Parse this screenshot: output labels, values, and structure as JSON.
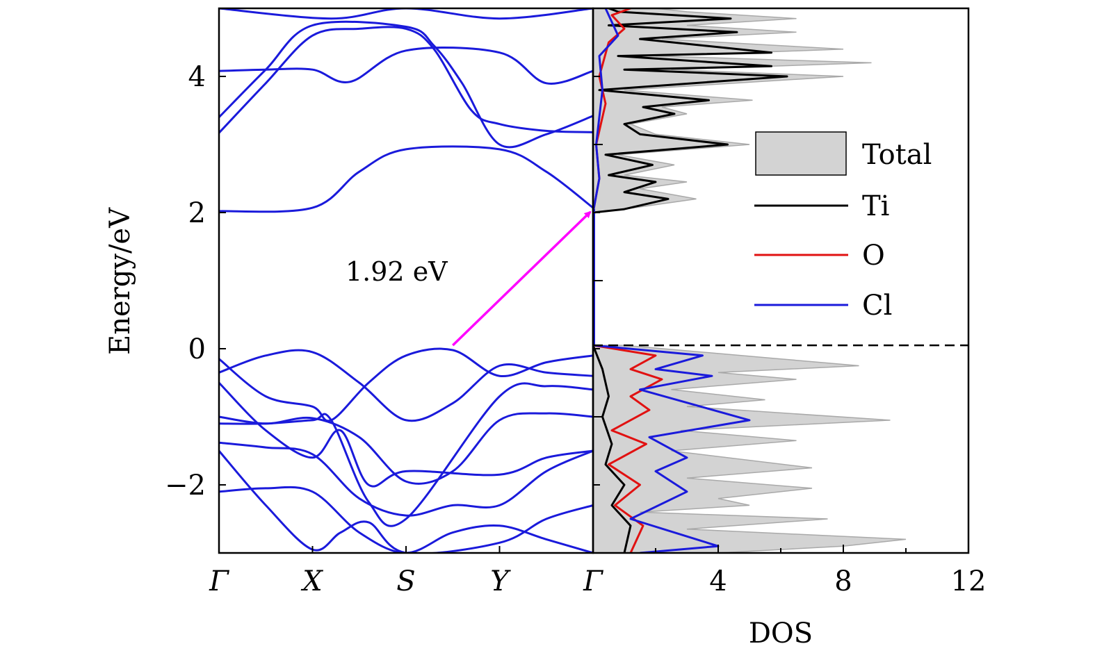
{
  "colors": {
    "band": "#1a1adb",
    "total_fill": "#d3d3d3",
    "total_stroke": "#a9a9a9",
    "ti": "#000000",
    "o": "#e11111",
    "cl": "#1a1adb",
    "arrow": "#ff00ff",
    "fermi": "#000000"
  },
  "chart_data": [
    {
      "type": "line",
      "panel": "band-structure",
      "ylabel": "Energy/eV",
      "ylim": [
        -3,
        5
      ],
      "yticks": [
        {
          "value": -2,
          "label": "−2"
        },
        {
          "value": 0,
          "label": "0"
        },
        {
          "value": 2,
          "label": "2"
        },
        {
          "value": 4,
          "label": "4"
        }
      ],
      "kpoints": [
        {
          "label": "Γ",
          "pos": 0
        },
        {
          "label": "X",
          "pos": 1
        },
        {
          "label": "S",
          "pos": 2
        },
        {
          "label": "Y",
          "pos": 3
        },
        {
          "label": "Γ",
          "pos": 4
        }
      ],
      "annotation": {
        "text": "1.92 eV",
        "arrow_from": {
          "k": 2.5,
          "E": 0.05
        },
        "arrow_to": {
          "k": 4,
          "E": 2.05
        }
      },
      "series": [
        {
          "values": [
            [
              0,
              2.02
            ],
            [
              1,
              2.07
            ],
            [
              1.5,
              2.6
            ],
            [
              2,
              2.93
            ],
            [
              3,
              2.93
            ],
            [
              3.5,
              2.6
            ],
            [
              4,
              2.07
            ]
          ]
        },
        {
          "values": [
            [
              0,
              3.17
            ],
            [
              0.5,
              3.9
            ],
            [
              1,
              4.6
            ],
            [
              1.5,
              4.7
            ],
            [
              2,
              4.7
            ],
            [
              2.3,
              4.4
            ],
            [
              2.7,
              3.5
            ],
            [
              3,
              3.3
            ],
            [
              3.5,
              3.2
            ],
            [
              4,
              3.18
            ]
          ]
        },
        {
          "values": [
            [
              0,
              3.4
            ],
            [
              0.5,
              4.1
            ],
            [
              1,
              4.75
            ],
            [
              2,
              4.73
            ],
            [
              2.3,
              4.45
            ],
            [
              2.6,
              3.9
            ],
            [
              3,
              3.0
            ],
            [
              3.5,
              3.15
            ],
            [
              4,
              3.42
            ]
          ]
        },
        {
          "values": [
            [
              0,
              4.08
            ],
            [
              0.5,
              4.1
            ],
            [
              1,
              4.1
            ],
            [
              1.4,
              3.92
            ],
            [
              2,
              4.38
            ],
            [
              3,
              4.35
            ],
            [
              3.5,
              3.9
            ],
            [
              4,
              4.08
            ]
          ]
        },
        {
          "values": [
            [
              0,
              5.0
            ],
            [
              1.2,
              4.85
            ],
            [
              2,
              5.0
            ],
            [
              3,
              4.85
            ],
            [
              4,
              5.0
            ]
          ]
        },
        {
          "values": [
            [
              0,
              -0.15
            ],
            [
              0.5,
              -0.7
            ],
            [
              1,
              -0.85
            ],
            [
              1.2,
              -1.05
            ],
            [
              1.6,
              -0.5
            ],
            [
              2,
              -0.1
            ],
            [
              2.5,
              -0.02
            ],
            [
              3,
              -0.4
            ],
            [
              3.5,
              -0.2
            ],
            [
              4,
              -0.1
            ]
          ]
        },
        {
          "values": [
            [
              0,
              -0.35
            ],
            [
              0.5,
              -0.1
            ],
            [
              1,
              -0.05
            ],
            [
              1.5,
              -0.5
            ],
            [
              2,
              -1.05
            ],
            [
              2.5,
              -0.8
            ],
            [
              3,
              -0.25
            ],
            [
              3.5,
              -0.35
            ],
            [
              4,
              -0.4
            ]
          ]
        },
        {
          "values": [
            [
              0,
              -0.5
            ],
            [
              0.5,
              -1.2
            ],
            [
              1,
              -1.6
            ],
            [
              1.3,
              -1.2
            ],
            [
              1.6,
              -2.0
            ],
            [
              2,
              -1.8
            ],
            [
              3,
              -1.85
            ],
            [
              3.5,
              -1.6
            ],
            [
              4,
              -1.5
            ]
          ]
        },
        {
          "values": [
            [
              0,
              -1.0
            ],
            [
              0.5,
              -1.1
            ],
            [
              1,
              -1.02
            ],
            [
              1.5,
              -1.3
            ],
            [
              2,
              -1.95
            ],
            [
              2.5,
              -1.8
            ],
            [
              3,
              -1.05
            ],
            [
              3.5,
              -0.95
            ],
            [
              4,
              -1.0
            ]
          ]
        },
        {
          "values": [
            [
              0,
              -1.1
            ],
            [
              0.5,
              -1.1
            ],
            [
              1,
              -1.05
            ],
            [
              1.2,
              -1.05
            ],
            [
              1.6,
              -2.25
            ],
            [
              2,
              -2.5
            ],
            [
              3,
              -0.7
            ],
            [
              3.5,
              -0.55
            ],
            [
              4,
              -0.6
            ]
          ]
        },
        {
          "values": [
            [
              0,
              -1.38
            ],
            [
              0.5,
              -1.45
            ],
            [
              1,
              -1.55
            ],
            [
              1.5,
              -2.2
            ],
            [
              2,
              -2.45
            ],
            [
              2.5,
              -2.3
            ],
            [
              3,
              -2.3
            ],
            [
              3.5,
              -1.8
            ],
            [
              4,
              -1.5
            ]
          ]
        },
        {
          "values": [
            [
              0,
              -1.5
            ],
            [
              0.5,
              -2.3
            ],
            [
              1,
              -2.95
            ],
            [
              1.3,
              -2.7
            ],
            [
              1.6,
              -2.55
            ],
            [
              2,
              -3.0
            ],
            [
              3,
              -2.85
            ],
            [
              3.5,
              -2.5
            ],
            [
              4,
              -2.3
            ]
          ]
        },
        {
          "values": [
            [
              0,
              -2.1
            ],
            [
              0.5,
              -2.05
            ],
            [
              1,
              -2.1
            ],
            [
              1.5,
              -2.7
            ],
            [
              2,
              -3.0
            ],
            [
              2.5,
              -2.7
            ],
            [
              3,
              -2.6
            ],
            [
              3.5,
              -2.8
            ],
            [
              4,
              -3.0
            ]
          ]
        }
      ]
    },
    {
      "type": "area",
      "panel": "dos",
      "xlabel": "DOS",
      "xlim": [
        0,
        12
      ],
      "ylim": [
        -3,
        5
      ],
      "xticks": [
        {
          "value": 4,
          "label": "4"
        },
        {
          "value": 8,
          "label": "8"
        },
        {
          "value": 12,
          "label": "12"
        }
      ],
      "legend": {
        "placement": "right",
        "entries": [
          "Total",
          "Ti",
          "O",
          "Cl"
        ]
      },
      "fermi_level": 0.05,
      "series": [
        {
          "name": "Total",
          "kind": "filled",
          "points": [
            [
              0.05,
              2.0
            ],
            [
              1.0,
              2.05
            ],
            [
              3.3,
              2.2
            ],
            [
              1.5,
              2.35
            ],
            [
              3.0,
              2.45
            ],
            [
              1.0,
              2.55
            ],
            [
              2.6,
              2.7
            ],
            [
              0.8,
              2.85
            ],
            [
              5.0,
              3.0
            ],
            [
              2.0,
              3.15
            ],
            [
              1.2,
              3.3
            ],
            [
              3.0,
              3.45
            ],
            [
              2.2,
              3.55
            ],
            [
              5.1,
              3.65
            ],
            [
              1.0,
              3.8
            ],
            [
              8.0,
              4.0
            ],
            [
              2.5,
              4.1
            ],
            [
              8.9,
              4.2
            ],
            [
              2.0,
              4.3
            ],
            [
              8.0,
              4.4
            ],
            [
              2.2,
              4.55
            ],
            [
              6.5,
              4.65
            ],
            [
              3.0,
              4.75
            ],
            [
              6.5,
              4.85
            ],
            [
              3.0,
              4.95
            ],
            [
              2.0,
              5.0
            ]
          ],
          "points_lower": [
            [
              1.0,
              0.05
            ],
            [
              6.0,
              -0.15
            ],
            [
              8.5,
              -0.25
            ],
            [
              4.0,
              -0.35
            ],
            [
              6.5,
              -0.45
            ],
            [
              2.5,
              -0.6
            ],
            [
              5.5,
              -0.75
            ],
            [
              3.0,
              -0.85
            ],
            [
              9.5,
              -1.05
            ],
            [
              2.8,
              -1.2
            ],
            [
              6.5,
              -1.35
            ],
            [
              2.5,
              -1.5
            ],
            [
              7.0,
              -1.75
            ],
            [
              3.0,
              -1.9
            ],
            [
              7.0,
              -2.05
            ],
            [
              4.0,
              -2.2
            ],
            [
              5.0,
              -2.3
            ],
            [
              1.5,
              -2.4
            ],
            [
              7.5,
              -2.5
            ],
            [
              3.0,
              -2.65
            ],
            [
              10.0,
              -2.8
            ],
            [
              8.0,
              -2.9
            ],
            [
              4.0,
              -3.0
            ]
          ]
        },
        {
          "name": "Ti",
          "kind": "line",
          "points": [
            [
              0,
              2.0
            ],
            [
              1.0,
              2.05
            ],
            [
              2.4,
              2.2
            ],
            [
              1.0,
              2.3
            ],
            [
              2.0,
              2.45
            ],
            [
              0.5,
              2.55
            ],
            [
              1.9,
              2.7
            ],
            [
              0.4,
              2.85
            ],
            [
              4.3,
              3.0
            ],
            [
              1.5,
              3.15
            ],
            [
              1.0,
              3.3
            ],
            [
              2.6,
              3.45
            ],
            [
              1.6,
              3.55
            ],
            [
              3.7,
              3.65
            ],
            [
              0.2,
              3.8
            ],
            [
              6.2,
              4.0
            ],
            [
              1.0,
              4.1
            ],
            [
              5.7,
              4.15
            ],
            [
              0.8,
              4.3
            ],
            [
              5.7,
              4.35
            ],
            [
              1.5,
              4.55
            ],
            [
              4.6,
              4.65
            ],
            [
              0.5,
              4.75
            ],
            [
              4.4,
              4.85
            ],
            [
              0.8,
              4.95
            ],
            [
              0.5,
              5.0
            ],
            [
              0,
              0.05
            ],
            [
              0.3,
              -0.3
            ],
            [
              0.5,
              -0.7
            ],
            [
              0.3,
              -1.0
            ],
            [
              0.6,
              -1.4
            ],
            [
              0.4,
              -1.7
            ],
            [
              1.0,
              -2.0
            ],
            [
              0.6,
              -2.3
            ],
            [
              1.2,
              -2.6
            ],
            [
              1.0,
              -3.0
            ]
          ]
        },
        {
          "name": "O",
          "kind": "line",
          "points": [
            [
              0,
              2.0
            ],
            [
              0.2,
              2.5
            ],
            [
              0.1,
              3.0
            ],
            [
              0.4,
              3.6
            ],
            [
              0.2,
              4.0
            ],
            [
              0.5,
              4.5
            ],
            [
              1.0,
              4.7
            ],
            [
              0.6,
              4.9
            ],
            [
              1.2,
              5.0
            ],
            [
              0,
              0.05
            ],
            [
              2.0,
              -0.1
            ],
            [
              1.2,
              -0.3
            ],
            [
              2.2,
              -0.45
            ],
            [
              1.2,
              -0.7
            ],
            [
              1.8,
              -0.9
            ],
            [
              0.6,
              -1.2
            ],
            [
              1.7,
              -1.4
            ],
            [
              0.5,
              -1.7
            ],
            [
              1.5,
              -2.0
            ],
            [
              0.7,
              -2.3
            ],
            [
              1.6,
              -2.6
            ],
            [
              1.2,
              -3.0
            ]
          ]
        },
        {
          "name": "Cl",
          "kind": "line",
          "points": [
            [
              0,
              2.0
            ],
            [
              0.2,
              2.5
            ],
            [
              0.1,
              3.0
            ],
            [
              0.3,
              3.8
            ],
            [
              0.2,
              4.3
            ],
            [
              0.8,
              4.6
            ],
            [
              0.4,
              5.0
            ],
            [
              0,
              0.05
            ],
            [
              3.5,
              -0.1
            ],
            [
              2.0,
              -0.3
            ],
            [
              3.8,
              -0.4
            ],
            [
              1.5,
              -0.6
            ],
            [
              5.0,
              -1.05
            ],
            [
              1.8,
              -1.3
            ],
            [
              3.0,
              -1.6
            ],
            [
              2.0,
              -1.8
            ],
            [
              3.0,
              -2.1
            ],
            [
              1.2,
              -2.5
            ],
            [
              4.0,
              -2.9
            ],
            [
              1.5,
              -3.0
            ]
          ]
        }
      ]
    }
  ]
}
